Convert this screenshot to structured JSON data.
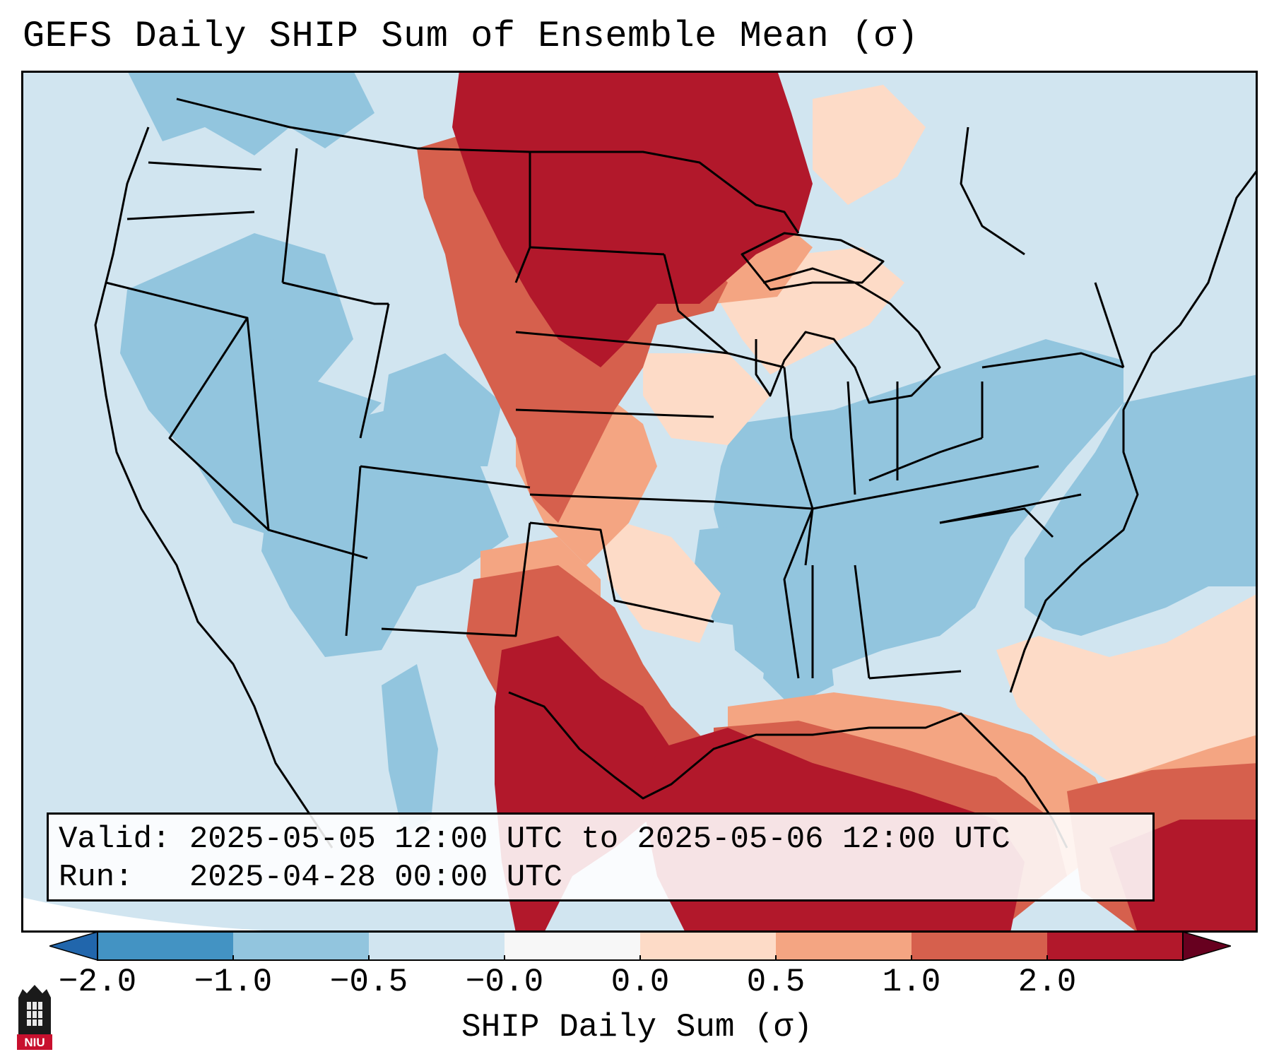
{
  "title": "GEFS Daily SHIP Sum of Ensemble Mean (σ)",
  "info": {
    "valid": "Valid: 2025-05-05 12:00 UTC to 2025-05-06 12:00 UTC",
    "run": "Run:   2025-04-28 00:00 UTC"
  },
  "colorbar": {
    "label": "SHIP Daily Sum (σ)",
    "ticks": [
      "−2.0",
      "−1.0",
      "−0.5",
      "−0.0",
      "0.0",
      "0.5",
      "1.0",
      "2.0"
    ],
    "colors": [
      "#4393c3",
      "#92c5de",
      "#d1e5f0",
      "#f7f7f7",
      "#fddbc7",
      "#f4a582",
      "#d6604d",
      "#b2182b"
    ],
    "under_color": "#2166ac",
    "over_color": "#67001f"
  },
  "map": {
    "ocean_color": "#d1e5f0",
    "border_color": "#000000",
    "regions": [
      {
        "name": "northern-plains-max",
        "category": 2.0,
        "color": "#b2182b"
      },
      {
        "name": "texas-gulf-max",
        "category": 2.0,
        "color": "#b2182b"
      },
      {
        "name": "great-lakes-moderate",
        "category": 1.0,
        "color": "#d6604d"
      },
      {
        "name": "southwest-below-normal",
        "category": -1.0,
        "color": "#92c5de"
      },
      {
        "name": "southeast-below-normal",
        "category": -1.0,
        "color": "#92c5de"
      }
    ]
  },
  "logo": {
    "text": "NIU",
    "name": "niu-logo"
  }
}
